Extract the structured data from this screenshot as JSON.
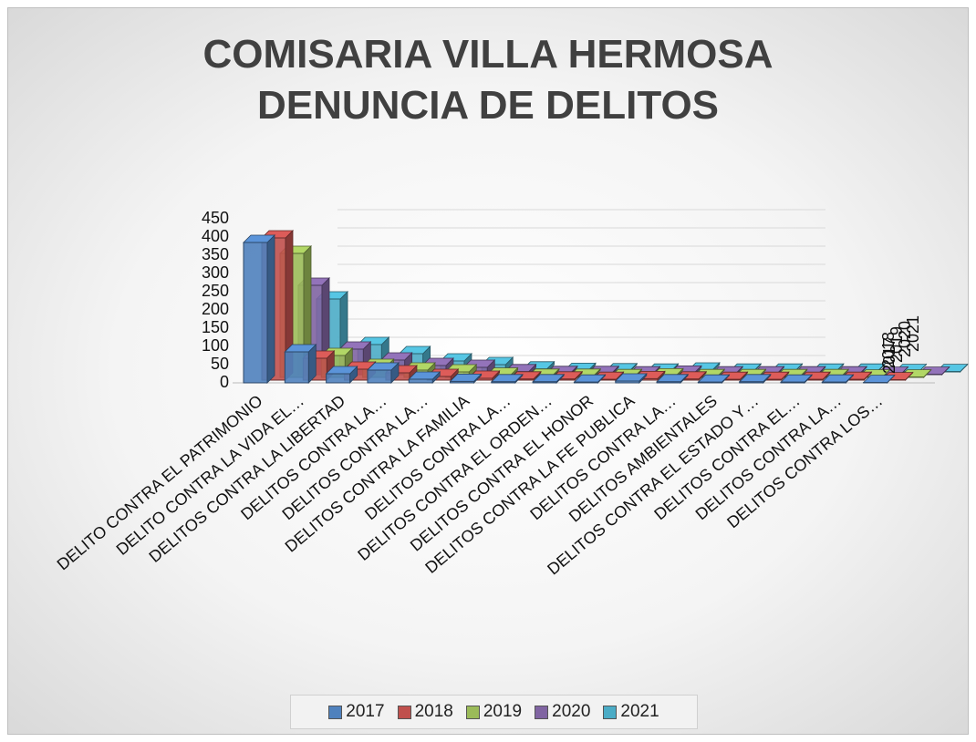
{
  "chart_data": {
    "type": "bar3d",
    "title": "COMISARIA VILLA HERMOSA DENUNCIA DE DELITOS",
    "categories": [
      "DELITO CONTRA EL PATRIMONIO",
      "DELITO CONTRA LA VIDA EL…",
      "DELITOS CONTRA LA LIBERTAD",
      "DELITOS CONTRA LA…",
      "DELITOS CONTRA LA…",
      "DELITOS CONTRA LA FAMILIA",
      "DELITOS CONTRA LA…",
      "DELITOS CONTRA EL ORDEN…",
      "DELITOS CONTRA EL HONOR",
      "DELITOS CONTRA LA FE PUBLICA",
      "DELITOS CONTRA LA…",
      "DELITOS AMBIENTALES",
      "DELITOS CONTRA EL ESTADO Y…",
      "DELITOS CONTRA EL…",
      "DELITOS CONTRA LA…",
      "DELITOS CONTRA LOS…"
    ],
    "series": [
      {
        "name": "2017",
        "color": "#4f81bd",
        "values": [
          385,
          85,
          25,
          35,
          10,
          4,
          3,
          3,
          2,
          5,
          3,
          2,
          3,
          2,
          2,
          1
        ]
      },
      {
        "name": "2018",
        "color": "#c0504d",
        "values": [
          390,
          60,
          30,
          20,
          10,
          5,
          3,
          3,
          2,
          4,
          3,
          2,
          2,
          2,
          2,
          1
        ]
      },
      {
        "name": "2019",
        "color": "#9bbb59",
        "values": [
          340,
          60,
          30,
          20,
          15,
          6,
          3,
          3,
          2,
          4,
          2,
          2,
          2,
          2,
          1,
          1
        ]
      },
      {
        "name": "2020",
        "color": "#8064a2",
        "values": [
          245,
          70,
          40,
          25,
          20,
          8,
          3,
          3,
          2,
          4,
          2,
          2,
          2,
          2,
          1,
          1
        ]
      },
      {
        "name": "2021",
        "color": "#4bacc6",
        "values": [
          200,
          75,
          50,
          30,
          20,
          8,
          4,
          3,
          2,
          5,
          2,
          2,
          2,
          2,
          1,
          1
        ]
      }
    ],
    "ylim": [
      0,
      450
    ],
    "yticks": [
      0,
      50,
      100,
      150,
      200,
      250,
      300,
      350,
      400,
      450
    ],
    "grid": true,
    "legend": "bottom"
  }
}
